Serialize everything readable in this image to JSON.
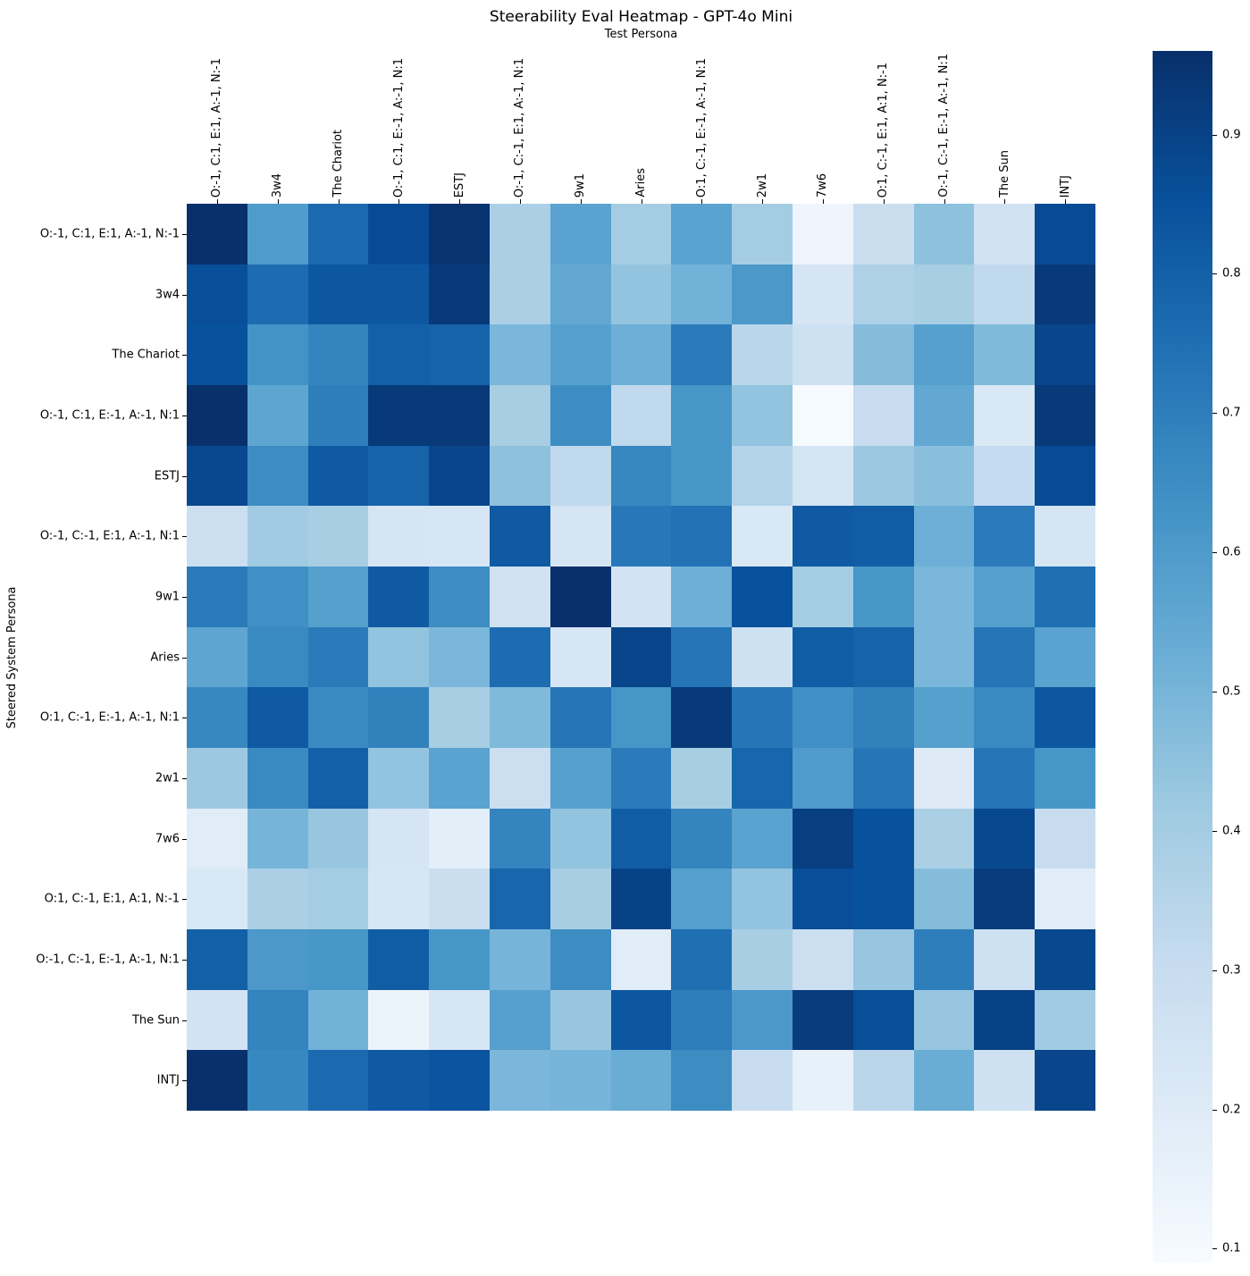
{
  "title": "Steerability Eval Heatmap - GPT-4o Mini",
  "x_axis_title": "Test Persona",
  "y_axis_title": "Steered System Persona",
  "chart_data": {
    "type": "heatmap",
    "colormap": "Blues",
    "vmin": 0.09,
    "vmax": 0.96,
    "grid": false,
    "legend_position": "right-colorbar",
    "x_labels": [
      "O:-1, C:1, E:1, A:-1, N:-1",
      "3w4",
      "The Chariot",
      "O:-1, C:1, E:-1, A:-1, N:1",
      "ESTJ",
      "O:-1, C:-1, E:1, A:-1, N:1",
      "9w1",
      "Aries",
      "O:1, C:-1, E:-1, A:-1, N:1",
      "2w1",
      "7w6",
      "O:1, C:-1, E:1, A:1, N:-1",
      "O:-1, C:-1, E:-1, A:-1, N:1",
      "The Sun",
      "INTJ"
    ],
    "y_labels": [
      "O:-1, C:1, E:1, A:-1, N:-1",
      "3w4",
      "The Chariot",
      "O:-1, C:1, E:-1, A:-1, N:1",
      "ESTJ",
      "O:-1, C:-1, E:1, A:-1, N:1",
      "9w1",
      "Aries",
      "O:1, C:-1, E:-1, A:-1, N:1",
      "2w1",
      "7w6",
      "O:1, C:-1, E:1, A:1, N:-1",
      "O:-1, C:-1, E:-1, A:-1, N:1",
      "The Sun",
      "INTJ"
    ],
    "values": [
      [
        0.96,
        0.6,
        0.77,
        0.87,
        0.95,
        0.38,
        0.57,
        0.4,
        0.57,
        0.4,
        0.13,
        0.29,
        0.45,
        0.26,
        0.87
      ],
      [
        0.86,
        0.76,
        0.83,
        0.83,
        0.93,
        0.38,
        0.55,
        0.44,
        0.51,
        0.61,
        0.24,
        0.37,
        0.39,
        0.32,
        0.93
      ],
      [
        0.85,
        0.63,
        0.68,
        0.8,
        0.79,
        0.49,
        0.58,
        0.52,
        0.71,
        0.34,
        0.27,
        0.47,
        0.58,
        0.48,
        0.89
      ],
      [
        0.96,
        0.56,
        0.7,
        0.93,
        0.93,
        0.39,
        0.65,
        0.32,
        0.62,
        0.44,
        0.1,
        0.3,
        0.55,
        0.22,
        0.93
      ],
      [
        0.88,
        0.65,
        0.82,
        0.79,
        0.89,
        0.45,
        0.32,
        0.67,
        0.62,
        0.36,
        0.24,
        0.42,
        0.46,
        0.31,
        0.87
      ],
      [
        0.28,
        0.41,
        0.39,
        0.24,
        0.23,
        0.82,
        0.24,
        0.72,
        0.74,
        0.22,
        0.82,
        0.81,
        0.52,
        0.71,
        0.24
      ],
      [
        0.71,
        0.64,
        0.58,
        0.82,
        0.65,
        0.26,
        0.96,
        0.25,
        0.52,
        0.85,
        0.4,
        0.62,
        0.49,
        0.58,
        0.75
      ],
      [
        0.56,
        0.66,
        0.71,
        0.44,
        0.49,
        0.76,
        0.23,
        0.89,
        0.73,
        0.27,
        0.81,
        0.79,
        0.49,
        0.73,
        0.57
      ],
      [
        0.67,
        0.82,
        0.66,
        0.69,
        0.39,
        0.48,
        0.73,
        0.62,
        0.93,
        0.73,
        0.64,
        0.69,
        0.58,
        0.66,
        0.83
      ],
      [
        0.42,
        0.66,
        0.8,
        0.44,
        0.57,
        0.28,
        0.58,
        0.71,
        0.39,
        0.78,
        0.6,
        0.73,
        0.2,
        0.73,
        0.62
      ],
      [
        0.19,
        0.5,
        0.43,
        0.24,
        0.18,
        0.68,
        0.44,
        0.81,
        0.68,
        0.57,
        0.91,
        0.85,
        0.38,
        0.88,
        0.3
      ],
      [
        0.22,
        0.38,
        0.4,
        0.23,
        0.29,
        0.78,
        0.39,
        0.9,
        0.58,
        0.44,
        0.86,
        0.85,
        0.47,
        0.92,
        0.19
      ],
      [
        0.8,
        0.61,
        0.62,
        0.81,
        0.62,
        0.5,
        0.65,
        0.19,
        0.75,
        0.39,
        0.28,
        0.43,
        0.7,
        0.27,
        0.88
      ],
      [
        0.25,
        0.68,
        0.51,
        0.14,
        0.23,
        0.58,
        0.43,
        0.83,
        0.7,
        0.61,
        0.92,
        0.86,
        0.43,
        0.9,
        0.41
      ],
      [
        0.96,
        0.67,
        0.77,
        0.82,
        0.84,
        0.49,
        0.5,
        0.53,
        0.65,
        0.3,
        0.16,
        0.34,
        0.53,
        0.27,
        0.89
      ]
    ],
    "colorbar_ticks": [
      0.9,
      0.8,
      0.7,
      0.6,
      0.5,
      0.4,
      0.3,
      0.2,
      0.1
    ],
    "colormap_anchors": [
      "#f7fbff",
      "#deebf7",
      "#c6dbef",
      "#9ecae1",
      "#6baed6",
      "#4292c6",
      "#2171b5",
      "#08519c",
      "#08306b"
    ]
  }
}
